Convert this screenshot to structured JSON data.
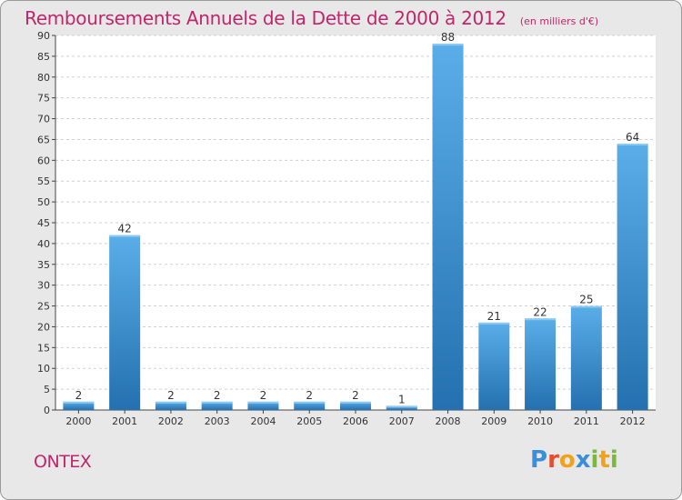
{
  "header": {
    "title": "Remboursements Annuels de la Dette de 2000 à 2012",
    "subtitle": "(en milliers d'€)"
  },
  "footer": {
    "commune": "ONTEX",
    "logo_text": "Proxiti"
  },
  "colors": {
    "accent": "#c0266b",
    "bar_top": "#5aaee8",
    "bar_bottom": "#2470b0",
    "panel_bg": "#ffffff",
    "frame_bg": "#e8e8e8",
    "logo_letters": [
      "#3a8fd6",
      "#e84c2c",
      "#f1a21c",
      "#3a8fd6",
      "#7cb83b",
      "#f1a21c",
      "#7cb83b"
    ]
  },
  "chart_data": {
    "type": "bar",
    "title": "Remboursements Annuels de la Dette de 2000 à 2012",
    "subtitle": "(en milliers d'€)",
    "categories": [
      "2000",
      "2001",
      "2002",
      "2003",
      "2004",
      "2005",
      "2006",
      "2007",
      "2008",
      "2009",
      "2010",
      "2011",
      "2012"
    ],
    "values": [
      2,
      42,
      2,
      2,
      2,
      2,
      2,
      1,
      88,
      21,
      22,
      25,
      64
    ],
    "data_labels": [
      "2",
      "42",
      "2",
      "2",
      "2",
      "2",
      "2",
      "1",
      "88",
      "21",
      "22",
      "25",
      "64"
    ],
    "ylim": [
      0,
      90
    ],
    "yticks": [
      0,
      5,
      10,
      15,
      20,
      25,
      30,
      35,
      40,
      45,
      50,
      55,
      60,
      65,
      70,
      75,
      80,
      85,
      90
    ],
    "grid": true,
    "legend": "none"
  }
}
